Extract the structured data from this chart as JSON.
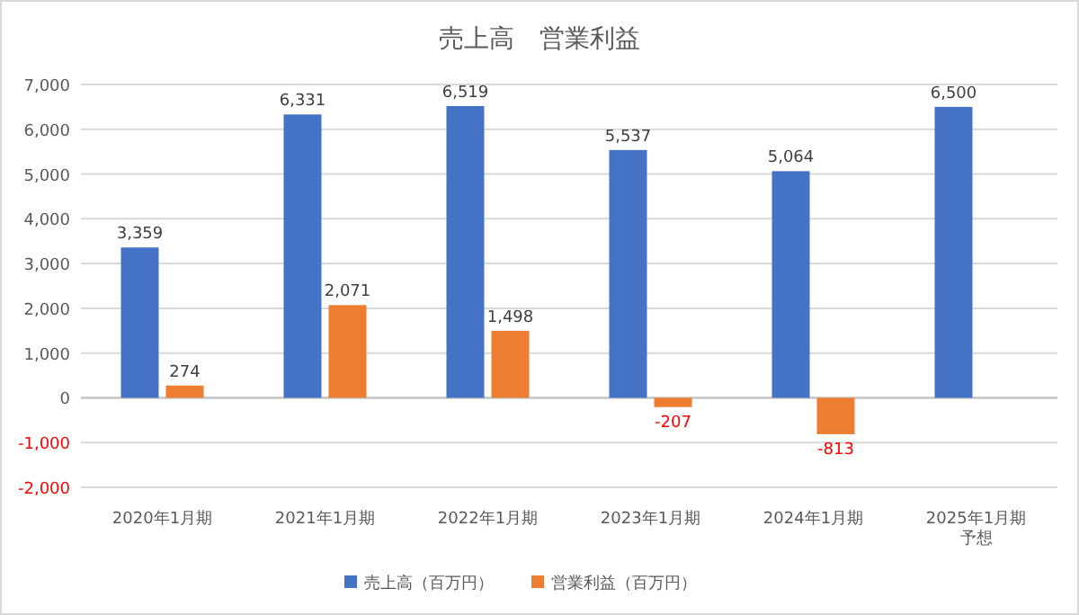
{
  "chart_data": {
    "type": "bar",
    "title": "売上高　営業利益",
    "categories": [
      "2020年1月期",
      "2021年1月期",
      "2022年1月期",
      "2023年1月期",
      "2024年1月期",
      "2025年1月期予想"
    ],
    "series": [
      {
        "name": "売上高（百万円）",
        "color": "#4472c4",
        "values": [
          3359,
          6331,
          6519,
          5537,
          5064,
          6500
        ],
        "value_labels": [
          "3,359",
          "6,331",
          "6,519",
          "5,537",
          "5,064",
          "6,500"
        ]
      },
      {
        "name": "営業利益（百万円）",
        "color": "#ed7d31",
        "values": [
          274,
          2071,
          1498,
          -207,
          -813,
          null
        ],
        "value_labels": [
          "274",
          "2,071",
          "1,498",
          "-207",
          "-813",
          null
        ]
      }
    ],
    "ylim": [
      -2000,
      7000
    ],
    "yticks": [
      {
        "value": -2000,
        "label": "-2,000"
      },
      {
        "value": -1000,
        "label": "-1,000"
      },
      0,
      {
        "value": 1000,
        "label": "1,000"
      },
      {
        "value": 2000,
        "label": "2,000"
      },
      {
        "value": 3000,
        "label": "3,000"
      },
      {
        "value": 4000,
        "label": "4,000"
      },
      {
        "value": 5000,
        "label": "5,000"
      },
      {
        "value": 6000,
        "label": "6,000"
      },
      {
        "value": 7000,
        "label": "7,000"
      }
    ],
    "grid": "y",
    "legend": "bottom"
  }
}
